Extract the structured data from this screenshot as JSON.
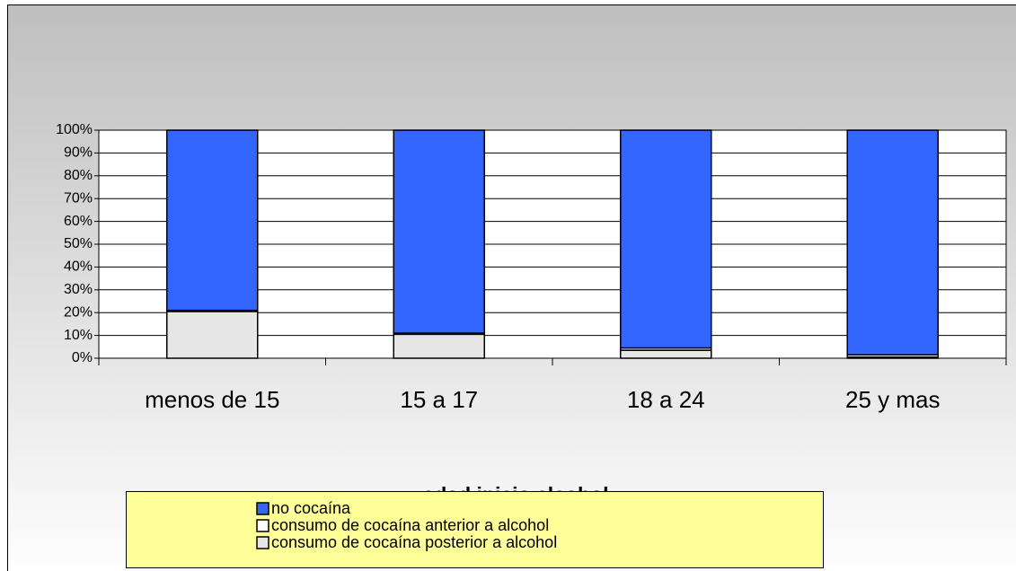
{
  "chart_data": {
    "type": "stacked_bar_100",
    "x_label": "edad inicio alcohol",
    "categories": [
      "menos de 15",
      "15 a 17",
      "18 a 24",
      "25 y mas"
    ],
    "series": [
      {
        "name": "consumo de cocaína posterior a alcohol",
        "color": "#e6e6e6",
        "values": [
          20.5,
          10.5,
          3.5,
          0.5
        ]
      },
      {
        "name": "consumo de cocaína anterior a alcohol",
        "color": "#ffffff",
        "values": [
          0.5,
          0.5,
          1,
          1
        ]
      },
      {
        "name": "no cocaína",
        "color": "#3366ff",
        "values": [
          79,
          89,
          95.5,
          98.5
        ]
      }
    ],
    "ylim": [
      0,
      100
    ],
    "yticks": [
      {
        "value": 0,
        "label": "0%"
      },
      {
        "value": 10,
        "label": "10%"
      },
      {
        "value": 20,
        "label": "20%"
      },
      {
        "value": 30,
        "label": "30%"
      },
      {
        "value": 40,
        "label": "40%"
      },
      {
        "value": 50,
        "label": "50%"
      },
      {
        "value": 60,
        "label": "60%"
      },
      {
        "value": 70,
        "label": "70%"
      },
      {
        "value": 80,
        "label": "80%"
      },
      {
        "value": 90,
        "label": "90%"
      },
      {
        "value": 100,
        "label": "100%"
      }
    ],
    "grid": true,
    "legend": "bottom"
  }
}
